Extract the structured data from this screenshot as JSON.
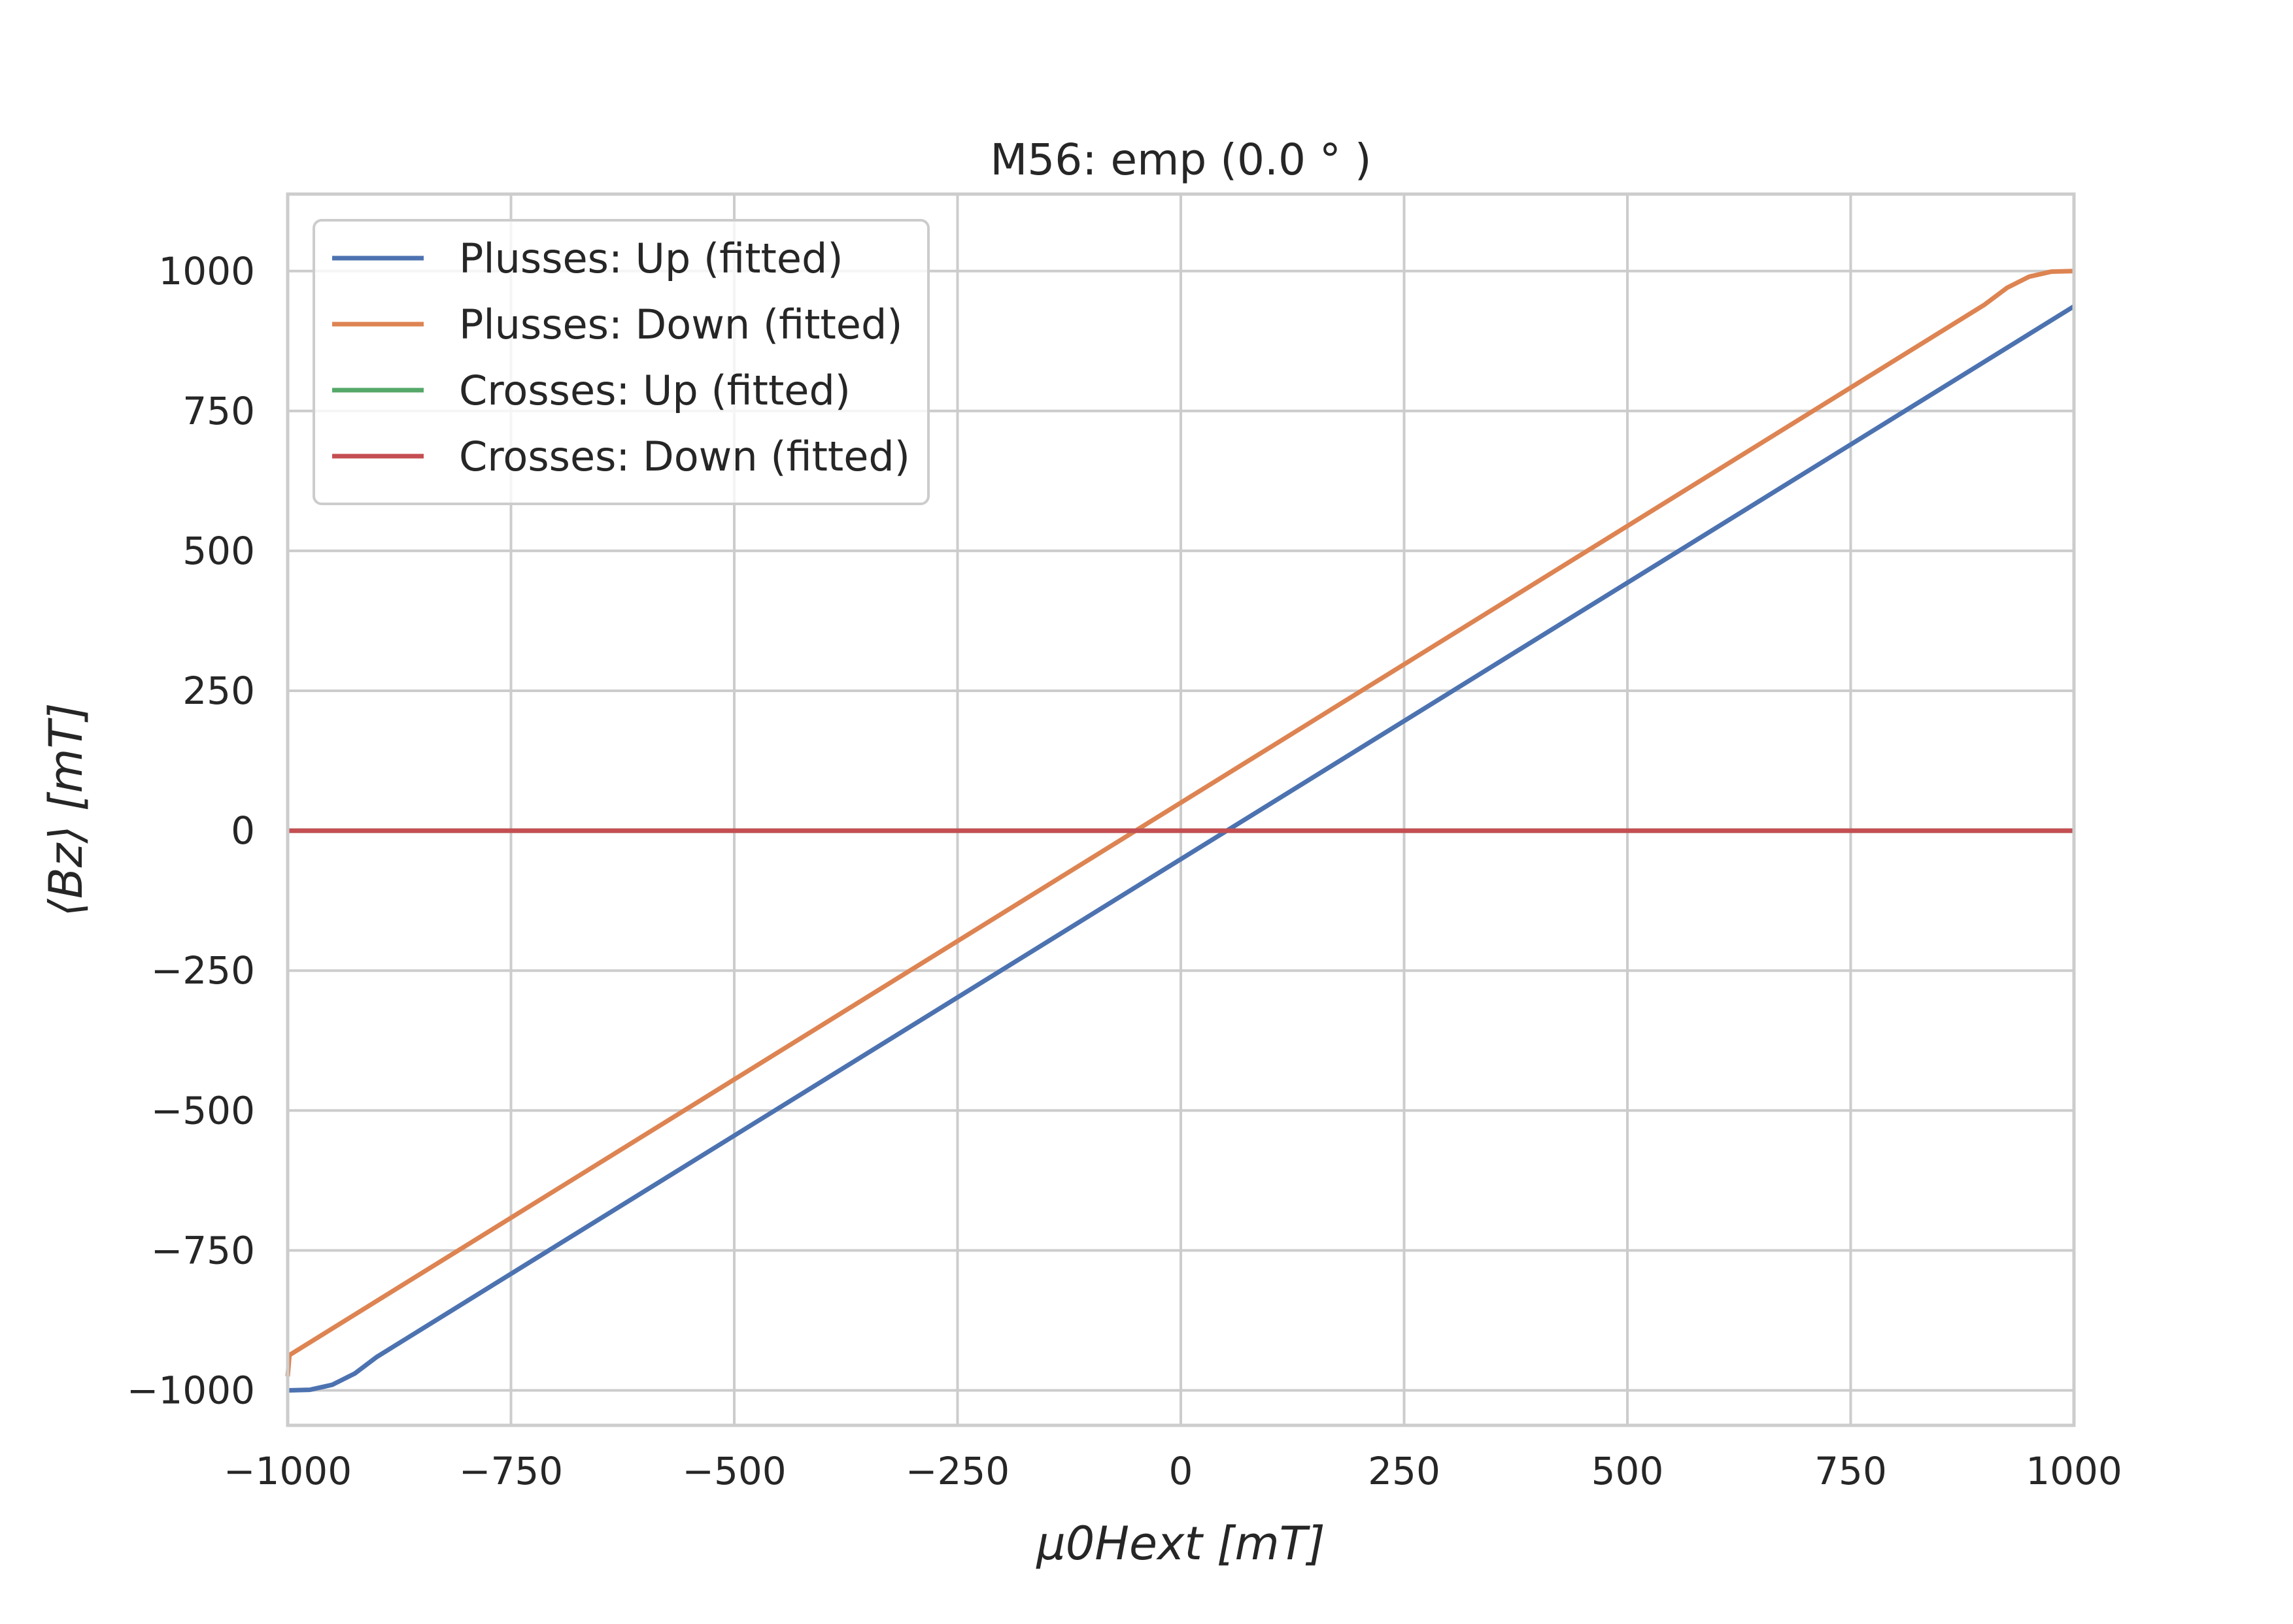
{
  "chart_data": {
    "type": "line",
    "title": "M56: emp (0.0 ° )",
    "xlabel": "μ0Hext [mT]",
    "ylabel": "⟨Bz⟩ [mT]",
    "xlim": [
      -1000,
      1000
    ],
    "ylim": [
      -1062.5,
      1137.5
    ],
    "xticks": [
      -1000,
      -750,
      -500,
      -250,
      0,
      250,
      500,
      750,
      1000
    ],
    "yticks": [
      -1000,
      -750,
      -500,
      -250,
      0,
      250,
      500,
      750,
      1000
    ],
    "xtick_labels": [
      "−1000",
      "−750",
      "−500",
      "−250",
      "0",
      "250",
      "500",
      "750",
      "1000"
    ],
    "ytick_labels": [
      "−1000",
      "−750",
      "−500",
      "−250",
      "0",
      "250",
      "500",
      "750",
      "1000"
    ],
    "grid": true,
    "legend_position": "top-left",
    "series": [
      {
        "name": "Plusses: Up (fitted)",
        "color": "#4c72b0",
        "x": [
          -1000,
          -975,
          -950,
          -925,
          -900,
          1000
        ],
        "y": [
          -1000,
          -999,
          -990,
          -970,
          -940,
          937
        ]
      },
      {
        "name": "Plusses: Down (fitted)",
        "color": "#dd8452",
        "x": [
          -1000,
          -998,
          900,
          925,
          950,
          975,
          1000
        ],
        "y": [
          -975,
          -937,
          940,
          970,
          990,
          999,
          1000
        ]
      },
      {
        "name": "Crosses: Up (fitted)",
        "color": "#55a868",
        "x": [
          -1000,
          1000
        ],
        "y": [
          0,
          0
        ]
      },
      {
        "name": "Crosses: Down (fitted)",
        "color": "#c44e52",
        "x": [
          -1000,
          1000
        ],
        "y": [
          0,
          0
        ]
      }
    ]
  }
}
